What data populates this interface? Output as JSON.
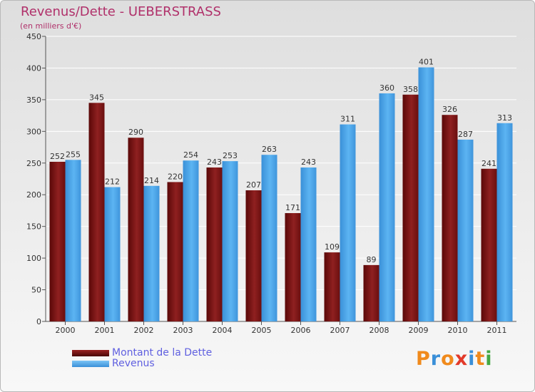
{
  "chart_data": {
    "type": "bar",
    "title": "Revenus/Dette - UEBERSTRASS",
    "subtitle": "(en milliers d'€)",
    "categories": [
      "2000",
      "2001",
      "2002",
      "2003",
      "2004",
      "2005",
      "2006",
      "2007",
      "2008",
      "2009",
      "2010",
      "2011"
    ],
    "series": [
      {
        "name": "Montant de la Dette",
        "color": "#7a1010",
        "values": [
          252,
          345,
          290,
          220,
          243,
          207,
          171,
          109,
          89,
          358,
          326,
          241
        ]
      },
      {
        "name": "Revenus",
        "color": "#4aa2e6",
        "values": [
          255,
          212,
          214,
          254,
          253,
          263,
          243,
          311,
          360,
          401,
          287,
          313
        ]
      }
    ],
    "ylim": [
      0,
      450
    ],
    "yticks": [
      0,
      50,
      100,
      150,
      200,
      250,
      300,
      350,
      400,
      450
    ],
    "grid": true,
    "legend_position": "bottom-left"
  },
  "logo": {
    "text": "Proxiti",
    "letter_colors": [
      "#f08a1c",
      "#3a8fd8",
      "#f08a1c",
      "#e23a2a",
      "#3a8fd8",
      "#f08a1c",
      "#43a843"
    ]
  }
}
